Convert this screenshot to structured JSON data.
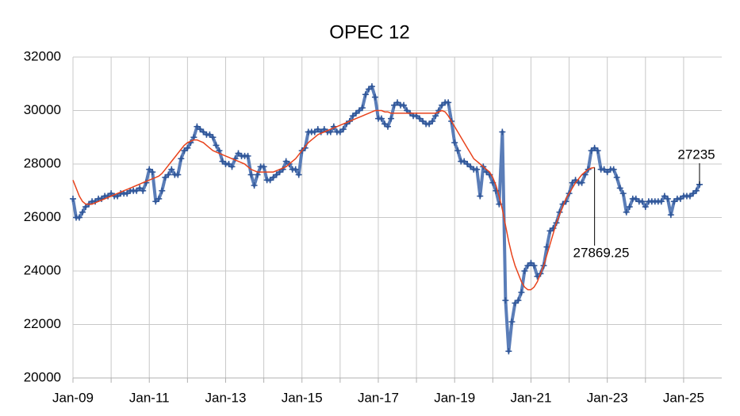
{
  "chart_data": {
    "type": "line",
    "title": "OPEC 12",
    "categories": [
      "Jan-09",
      null,
      null,
      null,
      null,
      null,
      null,
      null,
      null,
      null,
      null,
      null,
      null,
      null,
      null,
      null,
      null,
      null,
      null,
      null,
      null,
      null,
      null,
      null,
      "Jan-11",
      null,
      null,
      null,
      null,
      null,
      null,
      null,
      null,
      null,
      null,
      null,
      null,
      null,
      null,
      null,
      null,
      null,
      null,
      null,
      null,
      null,
      null,
      null,
      "Jan-13",
      null,
      null,
      null,
      null,
      null,
      null,
      null,
      null,
      null,
      null,
      null,
      null,
      null,
      null,
      null,
      null,
      null,
      null,
      null,
      null,
      null,
      null,
      null,
      "Jan-15",
      null,
      null,
      null,
      null,
      null,
      null,
      null,
      null,
      null,
      null,
      null,
      null,
      null,
      null,
      null,
      null,
      null,
      null,
      null,
      null,
      null,
      null,
      null,
      "Jan-17",
      null,
      null,
      null,
      null,
      null,
      null,
      null,
      null,
      null,
      null,
      null,
      null,
      null,
      null,
      null,
      null,
      null,
      null,
      null,
      null,
      null,
      null,
      null,
      "Jan-19",
      null,
      null,
      null,
      null,
      null,
      null,
      null,
      null,
      null,
      null,
      null,
      null,
      null,
      null,
      null,
      null,
      null,
      null,
      null,
      null,
      null,
      null,
      null,
      "Jan-21",
      null,
      null,
      null,
      null,
      null,
      null,
      null,
      null,
      null,
      null,
      null,
      null,
      null,
      null,
      null,
      null,
      null,
      null,
      null,
      null,
      null,
      null,
      null,
      "Jan-23",
      null,
      null,
      null,
      null,
      null,
      null,
      null,
      null,
      null,
      null,
      null,
      null,
      null,
      null,
      null,
      null,
      null,
      null,
      null,
      null,
      null,
      null,
      null,
      "Jan-25",
      null,
      null,
      null,
      null,
      null
    ],
    "series": [
      {
        "color": "#5a7db8",
        "marker_color": "#2f5597",
        "values": [
          26700,
          26000,
          26000,
          26200,
          26400,
          26500,
          26600,
          26600,
          26700,
          26700,
          26800,
          26800,
          26900,
          26800,
          26800,
          26900,
          26900,
          26900,
          27000,
          27000,
          27000,
          27100,
          27000,
          27300,
          27800,
          27700,
          26600,
          26700,
          27000,
          27500,
          27600,
          27800,
          27600,
          27600,
          28200,
          28500,
          28600,
          28800,
          29000,
          29400,
          29300,
          29200,
          29100,
          29100,
          29000,
          28700,
          28500,
          28100,
          28000,
          28000,
          27900,
          28200,
          28400,
          28300,
          28300,
          28300,
          27600,
          27200,
          27600,
          27900,
          27900,
          27400,
          27400,
          27500,
          27600,
          27700,
          27800,
          28100,
          28000,
          27800,
          27800,
          27600,
          28500,
          28600,
          29200,
          29200,
          29200,
          29300,
          29200,
          29300,
          29200,
          29200,
          29400,
          29200,
          29200,
          29300,
          29500,
          29600,
          29800,
          29900,
          30000,
          30100,
          30600,
          30800,
          30900,
          30500,
          29700,
          29700,
          29500,
          29400,
          29700,
          30200,
          30300,
          30200,
          30200,
          30000,
          29900,
          29800,
          29800,
          29700,
          29600,
          29500,
          29500,
          29600,
          29800,
          30000,
          30200,
          30300,
          30300,
          29600,
          28800,
          28500,
          28100,
          28100,
          28000,
          27900,
          27800,
          27800,
          26800,
          27900,
          27700,
          27600,
          27300,
          27000,
          26500,
          29200,
          22900,
          21000,
          22100,
          22800,
          22900,
          23200,
          24000,
          24200,
          24300,
          24200,
          23800,
          23900,
          24200,
          24900,
          25500,
          25600,
          25800,
          26200,
          26500,
          26600,
          26900,
          27300,
          27400,
          27300,
          27300,
          27600,
          27800,
          28500,
          28600,
          28500,
          27800,
          27800,
          27700,
          27800,
          27800,
          27500,
          27100,
          26900,
          26200,
          26400,
          26700,
          26700,
          26600,
          26600,
          26400,
          26600,
          26600,
          26600,
          26600,
          26600,
          26800,
          26700,
          26100,
          26600,
          26700,
          26700,
          26800,
          26800,
          26800,
          26900,
          27000,
          27235
        ]
      },
      {
        "color": "#e8431c",
        "values": [
          27400,
          27100,
          26800,
          26600,
          26500,
          26500,
          26500,
          26550,
          26600,
          26650,
          26700,
          26750,
          26800,
          26850,
          26900,
          26950,
          27000,
          27050,
          27100,
          27150,
          27200,
          27250,
          27300,
          27350,
          27400,
          27450,
          27500,
          27550,
          27650,
          27800,
          27950,
          28100,
          28250,
          28400,
          28550,
          28700,
          28800,
          28850,
          28900,
          28900,
          28850,
          28800,
          28700,
          28600,
          28500,
          28450,
          28400,
          28350,
          28300,
          28250,
          28200,
          28150,
          28100,
          28050,
          28000,
          27900,
          27800,
          27750,
          27700,
          27700,
          27700,
          27700,
          27700,
          27700,
          27750,
          27800,
          27850,
          27900,
          28000,
          28100,
          28200,
          28350,
          28500,
          28650,
          28800,
          28900,
          29000,
          29100,
          29150,
          29200,
          29250,
          29300,
          29350,
          29400,
          29450,
          29500,
          29550,
          29600,
          29650,
          29700,
          29750,
          29800,
          29850,
          29900,
          29950,
          30000,
          30000,
          30000,
          29950,
          29950,
          29900,
          29900,
          29900,
          29900,
          29900,
          29900,
          29900,
          29900,
          29900,
          29900,
          29900,
          29900,
          29900,
          29900,
          29900,
          29950,
          30000,
          29950,
          29800,
          29600,
          29400,
          29200,
          29000,
          28800,
          28600,
          28400,
          28200,
          28100,
          28000,
          27900,
          27800,
          27700,
          27500,
          27200,
          26800,
          26300,
          25700,
          25100,
          24600,
          24200,
          23900,
          23600,
          23400,
          23300,
          23300,
          23400,
          23600,
          23900,
          24200,
          24600,
          25000,
          25400,
          25800,
          26100,
          26400,
          26700,
          26900,
          27100,
          27300,
          27450,
          27600,
          27700,
          27800,
          27850,
          27869.25,
          null,
          null,
          null,
          null,
          null,
          null,
          null,
          null,
          null,
          null,
          null,
          null,
          null,
          null,
          null,
          null,
          null,
          null,
          null,
          null,
          null,
          null,
          null,
          null,
          null,
          null,
          null,
          null,
          null,
          null,
          null,
          null,
          null
        ]
      }
    ],
    "annotations": [
      "27869.25",
      "27235"
    ],
    "ylim": [
      20000,
      32000
    ],
    "yticks": [
      20000,
      22000,
      24000,
      26000,
      28000,
      30000,
      32000
    ],
    "grid": true
  }
}
